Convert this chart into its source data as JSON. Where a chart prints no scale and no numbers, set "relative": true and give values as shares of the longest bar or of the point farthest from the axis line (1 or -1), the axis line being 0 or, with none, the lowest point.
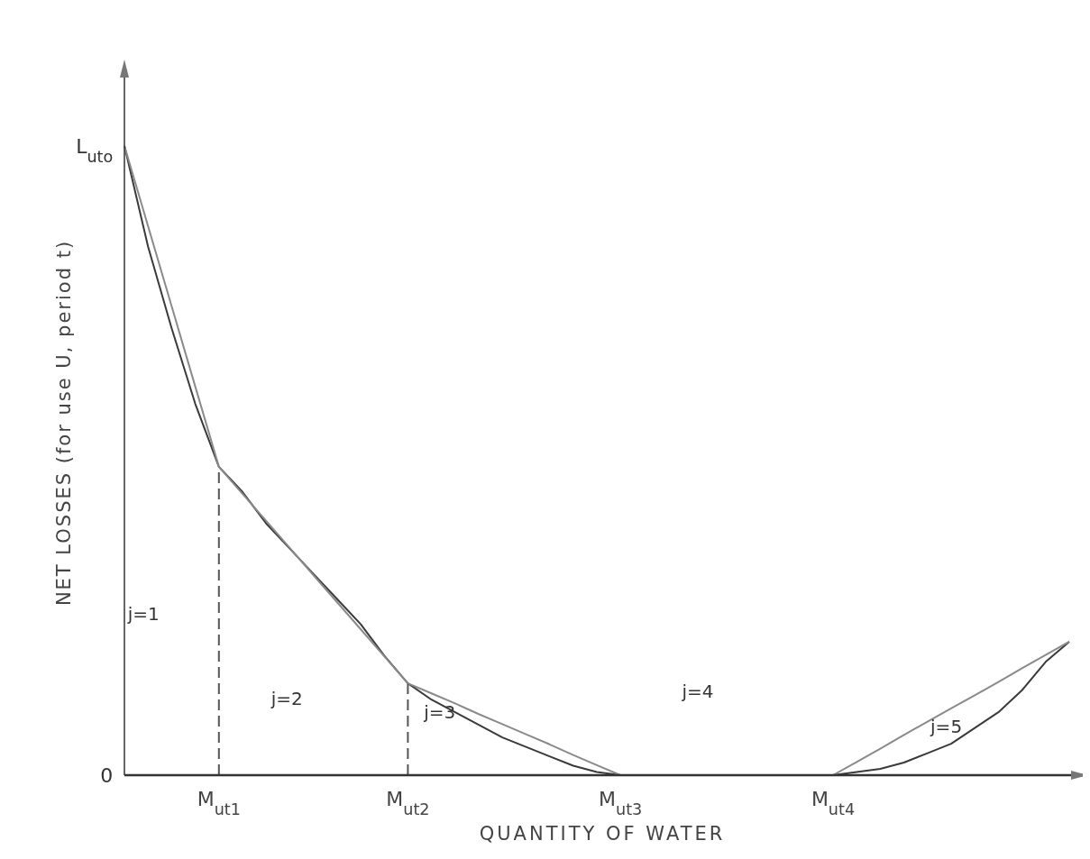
{
  "chart_data": {
    "type": "line",
    "relative": true,
    "xlabel": "QUANTITY OF WATER",
    "ylabel": "NET LOSSES (for use U, period t)",
    "categories": [
      null,
      null,
      null,
      null,
      "M$_{ut1}$",
      null,
      null,
      null,
      null,
      null,
      null,
      null,
      "M$_{ut2}$",
      null,
      null,
      null,
      null,
      null,
      null,
      null,
      null,
      "M$_{ut3}$",
      null,
      null,
      null,
      null,
      null,
      null,
      null,
      null,
      "M$_{ut4}$",
      null,
      null,
      null,
      null,
      null,
      null,
      null,
      null,
      null,
      null
    ],
    "series": [
      {
        "color": "#3a3a3a",
        "values": [
          1,
          0.84,
          0.71,
          0.59,
          0.49,
          0.45,
          0.4,
          0.36,
          0.32,
          0.28,
          0.24,
          0.19,
          0.146,
          0.12,
          0.1,
          0.08,
          0.06,
          0.045,
          0.03,
          0.015,
          0.005,
          0,
          0,
          0,
          0,
          0,
          0,
          0,
          0,
          0,
          0,
          0.005,
          0.01,
          0.02,
          0.035,
          0.05,
          0.075,
          0.1,
          0.135,
          0.18,
          0.212
        ]
      },
      {
        "color": "#8a8a8a",
        "values": [
          1,
          0.8725,
          0.745,
          0.6175,
          0.49,
          0.447,
          0.404,
          0.361,
          0.318,
          0.275,
          0.232,
          0.189,
          0.146,
          0.13,
          0.114,
          0.097,
          0.081,
          0.065,
          0.049,
          0.032,
          0.016,
          0,
          0,
          0,
          0,
          0,
          0,
          0,
          0,
          0,
          0,
          0.021,
          0.042,
          0.064,
          0.085,
          0.106,
          0.127,
          0.148,
          0.17,
          0.191,
          0.212
        ]
      }
    ],
    "ref_lines": [
      {
        "axis": "x",
        "value": "M$_{ut1}$",
        "line_style": "dashed",
        "color": "#555555"
      },
      {
        "axis": "x",
        "value": "M$_{ut2}$",
        "line_style": "dashed",
        "color": "#555555"
      }
    ],
    "annotations": [
      "L$_{uto}$",
      "0",
      "j=1",
      "j=2",
      "j=3",
      "j=4",
      "j=5"
    ]
  }
}
